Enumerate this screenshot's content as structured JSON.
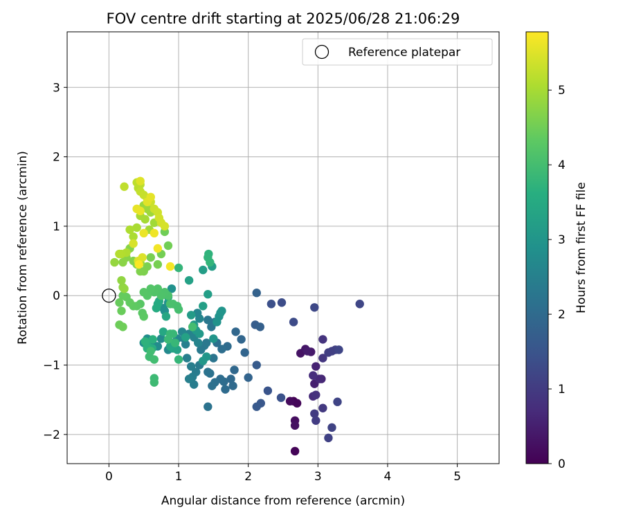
{
  "chart_data": {
    "type": "scatter",
    "title": "FOV centre drift starting at 2025/06/28 21:06:29",
    "xlabel": "Angular distance from reference (arcmin)",
    "ylabel": "Rotation from reference (arcmin)",
    "xlim": [
      -0.6,
      5.6
    ],
    "ylim": [
      -2.42,
      3.8
    ],
    "xticks": [
      0,
      1,
      2,
      3,
      4,
      5
    ],
    "xtick_labels": [
      "0",
      "1",
      "2",
      "3",
      "4",
      "5"
    ],
    "yticks": [
      -2,
      -1,
      0,
      1,
      2,
      3
    ],
    "ytick_labels": [
      "−2",
      "−1",
      "0",
      "1",
      "2",
      "3"
    ],
    "grid": true,
    "legend": {
      "placement": "top-right",
      "entries": [
        "Reference platepar"
      ]
    },
    "reference_point": {
      "x": 0,
      "y": 0
    },
    "colorbar": {
      "label": "Hours from first FF file",
      "colormap": "viridis",
      "range": [
        0,
        5.78
      ],
      "ticks": [
        0,
        1,
        2,
        3,
        4,
        5
      ],
      "tick_labels": [
        "0",
        "1",
        "2",
        "3",
        "4",
        "5"
      ]
    },
    "series": [
      {
        "color_encoding": "hours",
        "points": [
          [
            2.65,
            -1.52,
            0.0
          ],
          [
            2.67,
            -2.24,
            0.05
          ],
          [
            2.7,
            -1.55,
            0.1
          ],
          [
            2.6,
            -1.52,
            0.15
          ],
          [
            2.67,
            -1.8,
            0.2
          ],
          [
            2.67,
            -1.87,
            0.25
          ],
          [
            2.75,
            -0.83,
            0.3
          ],
          [
            2.82,
            -0.77,
            0.35
          ],
          [
            2.9,
            -0.81,
            0.4
          ],
          [
            2.85,
            -0.8,
            0.45
          ],
          [
            2.95,
            -1.27,
            0.5
          ],
          [
            2.97,
            -1.02,
            0.55
          ],
          [
            3.05,
            -1.2,
            0.6
          ],
          [
            3.02,
            -1.2,
            0.65
          ],
          [
            2.93,
            -1.45,
            0.7
          ],
          [
            2.93,
            -1.15,
            0.75
          ],
          [
            2.97,
            -1.43,
            0.8
          ],
          [
            3.07,
            -0.63,
            0.85
          ],
          [
            3.07,
            -0.9,
            0.9
          ],
          [
            3.07,
            -1.62,
            0.95
          ],
          [
            2.95,
            -1.7,
            1.0
          ],
          [
            2.97,
            -1.8,
            1.02
          ],
          [
            3.15,
            -0.82,
            1.05
          ],
          [
            3.2,
            -0.8,
            1.08
          ],
          [
            3.25,
            -0.78,
            1.1
          ],
          [
            3.15,
            -2.05,
            1.12
          ],
          [
            3.2,
            -1.9,
            1.15
          ],
          [
            3.28,
            -1.53,
            1.18
          ],
          [
            3.3,
            -0.78,
            1.2
          ],
          [
            3.6,
            -0.12,
            1.22
          ],
          [
            2.95,
            -0.17,
            1.25
          ],
          [
            2.65,
            -0.38,
            1.3
          ],
          [
            2.48,
            -0.1,
            1.35
          ],
          [
            2.33,
            -0.12,
            1.4
          ],
          [
            2.47,
            -1.47,
            1.45
          ],
          [
            2.28,
            -1.37,
            1.5
          ],
          [
            2.18,
            -1.55,
            1.55
          ],
          [
            2.12,
            -1.6,
            1.6
          ],
          [
            2.12,
            -1.0,
            1.65
          ],
          [
            2.1,
            -0.42,
            1.7
          ],
          [
            2.17,
            -0.45,
            1.75
          ],
          [
            2.12,
            0.04,
            1.8
          ],
          [
            2.0,
            -1.18,
            1.85
          ],
          [
            1.95,
            -0.82,
            1.88
          ],
          [
            1.9,
            -0.63,
            1.9
          ],
          [
            1.82,
            -0.52,
            1.92
          ],
          [
            1.8,
            -1.07,
            1.94
          ],
          [
            1.75,
            -1.2,
            1.96
          ],
          [
            1.78,
            -1.3,
            1.98
          ],
          [
            1.7,
            -0.73,
            2.0
          ],
          [
            1.67,
            -1.35,
            2.02
          ],
          [
            1.65,
            -1.24,
            2.04
          ],
          [
            1.6,
            -1.2,
            2.06
          ],
          [
            1.62,
            -0.77,
            2.08
          ],
          [
            1.55,
            -0.68,
            2.1
          ],
          [
            1.52,
            -1.25,
            2.12
          ],
          [
            1.48,
            -1.3,
            2.14
          ],
          [
            1.45,
            -1.12,
            2.16
          ],
          [
            1.42,
            -1.1,
            2.18
          ],
          [
            1.42,
            -1.6,
            2.2
          ],
          [
            1.5,
            -0.9,
            2.22
          ],
          [
            1.47,
            -0.45,
            2.24
          ],
          [
            1.52,
            -0.38,
            2.26
          ],
          [
            1.42,
            -0.35,
            2.28
          ],
          [
            1.4,
            -0.68,
            2.3
          ],
          [
            1.37,
            -0.72,
            2.32
          ],
          [
            1.32,
            -0.78,
            2.34
          ],
          [
            1.3,
            -1.0,
            2.36
          ],
          [
            1.25,
            -1.1,
            2.38
          ],
          [
            1.22,
            -1.28,
            2.4
          ],
          [
            1.2,
            -1.17,
            2.42
          ],
          [
            1.18,
            -1.02,
            2.44
          ],
          [
            1.15,
            -1.2,
            2.46
          ],
          [
            1.12,
            -0.9,
            2.48
          ],
          [
            1.1,
            -0.7,
            2.5
          ],
          [
            1.08,
            -0.62,
            2.52
          ],
          [
            1.15,
            -0.55,
            2.54
          ],
          [
            1.22,
            -0.6,
            2.56
          ],
          [
            1.28,
            -0.68,
            2.58
          ],
          [
            1.3,
            -0.33,
            2.6
          ],
          [
            1.27,
            -0.25,
            2.62
          ],
          [
            1.05,
            -0.52,
            2.64
          ],
          [
            0.98,
            -0.62,
            2.66
          ],
          [
            0.9,
            -0.68,
            2.68
          ],
          [
            0.85,
            -0.78,
            2.7
          ],
          [
            0.75,
            -0.62,
            2.72
          ],
          [
            0.7,
            -0.73,
            2.74
          ],
          [
            0.65,
            -0.72,
            2.76
          ],
          [
            0.6,
            -0.65,
            2.78
          ],
          [
            0.55,
            -0.62,
            2.8
          ],
          [
            0.5,
            -0.68,
            2.82
          ],
          [
            0.78,
            -0.18,
            2.84
          ],
          [
            0.8,
            -0.22,
            2.86
          ],
          [
            0.85,
            -0.1,
            2.88
          ],
          [
            0.9,
            0.1,
            2.9
          ],
          [
            1.58,
            -0.3,
            2.92
          ],
          [
            1.55,
            -0.38,
            2.94
          ],
          [
            1.6,
            -0.25,
            2.96
          ],
          [
            1.62,
            -0.22,
            2.98
          ],
          [
            1.5,
            -0.62,
            3.0
          ],
          [
            1.4,
            -0.88,
            3.02
          ],
          [
            1.35,
            -0.94,
            3.05
          ],
          [
            1.3,
            -0.55,
            3.08
          ],
          [
            1.25,
            -0.5,
            3.1
          ],
          [
            1.22,
            -0.42,
            3.12
          ],
          [
            1.18,
            -0.28,
            3.15
          ],
          [
            1.35,
            0.37,
            3.18
          ],
          [
            1.48,
            0.42,
            3.2
          ],
          [
            1.42,
            0.02,
            3.22
          ],
          [
            1.35,
            -0.15,
            3.25
          ],
          [
            1.15,
            0.22,
            3.28
          ],
          [
            1.1,
            -0.6,
            3.3
          ],
          [
            0.98,
            -0.78,
            3.32
          ],
          [
            0.92,
            -0.76,
            3.35
          ],
          [
            0.88,
            -0.73,
            3.38
          ],
          [
            0.85,
            -0.02,
            3.4
          ],
          [
            0.82,
            -0.3,
            3.42
          ],
          [
            0.78,
            -0.52,
            3.45
          ],
          [
            0.75,
            0.0,
            3.48
          ],
          [
            0.72,
            -0.08,
            3.5
          ],
          [
            0.7,
            -0.12,
            3.52
          ],
          [
            0.68,
            -0.18,
            3.55
          ],
          [
            0.62,
            -0.76,
            3.58
          ],
          [
            0.58,
            -0.75,
            3.6
          ],
          [
            0.55,
            -0.72,
            3.62
          ],
          [
            0.63,
            -0.63,
            3.65
          ],
          [
            0.55,
            -0.76,
            3.68
          ],
          [
            0.52,
            -0.66,
            3.7
          ],
          [
            1.43,
            0.6,
            3.72
          ],
          [
            1.42,
            0.55,
            3.74
          ],
          [
            1.45,
            0.48,
            3.76
          ],
          [
            1.0,
            0.4,
            3.78
          ],
          [
            1.0,
            -0.92,
            3.8
          ],
          [
            0.95,
            -0.68,
            3.82
          ],
          [
            0.92,
            -0.55,
            3.84
          ],
          [
            0.88,
            -0.55,
            3.86
          ],
          [
            0.85,
            -0.63,
            3.88
          ],
          [
            0.65,
            -1.19,
            3.9
          ],
          [
            0.65,
            -1.25,
            3.92
          ],
          [
            0.58,
            -0.88,
            3.94
          ],
          [
            0.6,
            -0.8,
            3.96
          ],
          [
            0.65,
            -0.92,
            3.98
          ],
          [
            1.2,
            -0.45,
            4.0
          ],
          [
            1.0,
            -0.2,
            4.02
          ],
          [
            0.98,
            -0.15,
            4.04
          ],
          [
            0.92,
            -0.12,
            4.06
          ],
          [
            0.88,
            -0.12,
            4.08
          ],
          [
            0.85,
            0.0,
            4.1
          ],
          [
            0.8,
            0.05,
            4.12
          ],
          [
            0.75,
            0.0,
            4.14
          ],
          [
            0.7,
            0.1,
            4.16
          ],
          [
            0.65,
            0.05,
            4.18
          ],
          [
            0.6,
            0.1,
            4.2
          ],
          [
            0.55,
            0.0,
            4.22
          ],
          [
            0.5,
            0.05,
            4.24
          ],
          [
            0.45,
            -0.12,
            4.26
          ],
          [
            0.48,
            -0.25,
            4.28
          ],
          [
            0.5,
            -0.3,
            4.3
          ],
          [
            0.4,
            -0.15,
            4.32
          ],
          [
            0.35,
            -0.15,
            4.34
          ],
          [
            0.3,
            -0.1,
            4.36
          ],
          [
            0.25,
            -0.02,
            4.38
          ],
          [
            0.2,
            0.0,
            4.4
          ],
          [
            0.15,
            -0.1,
            4.42
          ],
          [
            0.18,
            -0.22,
            4.44
          ],
          [
            0.15,
            -0.42,
            4.46
          ],
          [
            0.2,
            -0.45,
            4.48
          ],
          [
            0.8,
            0.92,
            4.5
          ],
          [
            0.85,
            0.72,
            4.52
          ],
          [
            0.75,
            0.6,
            4.54
          ],
          [
            0.7,
            0.45,
            4.56
          ],
          [
            0.6,
            0.55,
            4.58
          ],
          [
            0.55,
            0.42,
            4.6
          ],
          [
            0.5,
            0.35,
            4.62
          ],
          [
            0.45,
            0.35,
            4.64
          ],
          [
            0.4,
            0.45,
            4.66
          ],
          [
            0.35,
            0.5,
            4.68
          ],
          [
            0.3,
            0.68,
            4.7
          ],
          [
            0.25,
            0.55,
            4.72
          ],
          [
            0.2,
            0.48,
            4.74
          ],
          [
            0.15,
            0.6,
            4.76
          ],
          [
            0.2,
            0.12,
            4.78
          ],
          [
            0.18,
            0.22,
            4.8
          ],
          [
            0.22,
            0.1,
            4.82
          ],
          [
            0.08,
            0.48,
            4.84
          ],
          [
            0.45,
            0.47,
            4.86
          ],
          [
            0.5,
            1.3,
            4.88
          ],
          [
            0.55,
            1.25,
            4.9
          ],
          [
            0.6,
            1.2,
            4.92
          ],
          [
            0.65,
            1.05,
            4.94
          ],
          [
            0.58,
            0.95,
            4.96
          ],
          [
            0.52,
            1.1,
            4.98
          ],
          [
            0.45,
            1.15,
            5.0
          ],
          [
            0.4,
            0.98,
            5.02
          ],
          [
            0.35,
            0.85,
            5.04
          ],
          [
            0.3,
            0.95,
            5.06
          ],
          [
            0.25,
            0.62,
            5.08
          ],
          [
            0.18,
            0.6,
            5.1
          ],
          [
            0.15,
            0.6,
            5.12
          ],
          [
            0.42,
            1.55,
            5.15
          ],
          [
            0.45,
            1.6,
            5.18
          ],
          [
            0.4,
            1.63,
            5.2
          ],
          [
            0.22,
            1.57,
            5.22
          ],
          [
            0.45,
            1.5,
            5.25
          ],
          [
            0.5,
            1.45,
            5.28
          ],
          [
            0.55,
            1.4,
            5.3
          ],
          [
            0.6,
            1.35,
            5.32
          ],
          [
            0.65,
            1.25,
            5.34
          ],
          [
            0.7,
            1.2,
            5.36
          ],
          [
            0.72,
            1.12,
            5.38
          ],
          [
            0.75,
            1.05,
            5.4
          ],
          [
            0.8,
            1.0,
            5.42
          ],
          [
            0.35,
            0.75,
            5.44
          ],
          [
            0.42,
            0.5,
            5.46
          ],
          [
            0.48,
            0.55,
            5.48
          ],
          [
            0.45,
            1.65,
            5.5
          ],
          [
            0.55,
            1.35,
            5.52
          ],
          [
            0.6,
            1.42,
            5.55
          ],
          [
            0.4,
            1.25,
            5.58
          ],
          [
            0.45,
            1.22,
            5.6
          ],
          [
            0.5,
            0.9,
            5.62
          ],
          [
            0.65,
            0.9,
            5.65
          ],
          [
            0.7,
            0.68,
            5.68
          ],
          [
            0.88,
            0.42,
            5.7
          ],
          [
            0.43,
            0.45,
            5.75
          ]
        ]
      }
    ]
  }
}
